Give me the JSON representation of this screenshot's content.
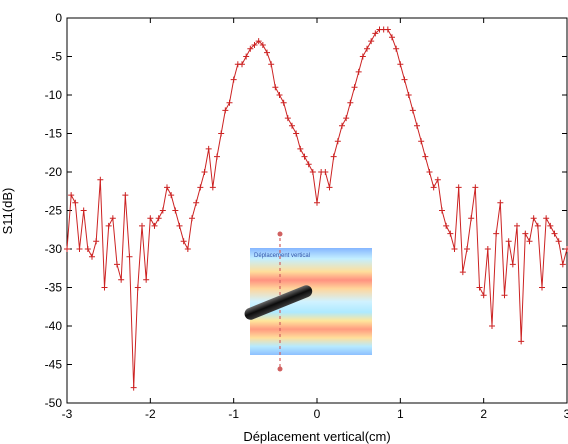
{
  "chart_data": {
    "type": "line",
    "xlabel": "Déplacement vertical(cm)",
    "ylabel": "S11(dB)",
    "xlim": [
      -3,
      3
    ],
    "ylim": [
      -50,
      0
    ],
    "xticks": [
      -3,
      -2,
      -1,
      0,
      1,
      2,
      3
    ],
    "yticks": [
      0,
      -5,
      -10,
      -15,
      -20,
      -25,
      -30,
      -35,
      -40,
      -45,
      -50
    ],
    "grid": false,
    "colors": {
      "series": "#cc2222",
      "axis": "#000000"
    },
    "series": [
      {
        "marker": "plus",
        "x": [
          -3.0,
          -2.95,
          -2.9,
          -2.85,
          -2.8,
          -2.75,
          -2.7,
          -2.65,
          -2.6,
          -2.55,
          -2.5,
          -2.45,
          -2.4,
          -2.35,
          -2.3,
          -2.25,
          -2.2,
          -2.15,
          -2.1,
          -2.05,
          -2.0,
          -1.95,
          -1.9,
          -1.85,
          -1.8,
          -1.75,
          -1.7,
          -1.65,
          -1.6,
          -1.55,
          -1.5,
          -1.45,
          -1.4,
          -1.35,
          -1.3,
          -1.25,
          -1.2,
          -1.15,
          -1.1,
          -1.05,
          -1.0,
          -0.95,
          -0.9,
          -0.85,
          -0.8,
          -0.75,
          -0.7,
          -0.65,
          -0.6,
          -0.55,
          -0.5,
          -0.45,
          -0.4,
          -0.35,
          -0.3,
          -0.25,
          -0.2,
          -0.15,
          -0.1,
          -0.05,
          0.0,
          0.05,
          0.1,
          0.15,
          0.2,
          0.25,
          0.3,
          0.35,
          0.4,
          0.45,
          0.5,
          0.55,
          0.6,
          0.65,
          0.7,
          0.75,
          0.8,
          0.85,
          0.9,
          0.95,
          1.0,
          1.05,
          1.1,
          1.15,
          1.2,
          1.25,
          1.3,
          1.35,
          1.4,
          1.45,
          1.5,
          1.55,
          1.6,
          1.65,
          1.7,
          1.75,
          1.8,
          1.85,
          1.9,
          1.95,
          2.0,
          2.05,
          2.1,
          2.15,
          2.2,
          2.25,
          2.3,
          2.35,
          2.4,
          2.45,
          2.5,
          2.55,
          2.6,
          2.65,
          2.7,
          2.75,
          2.8,
          2.85,
          2.9,
          2.95,
          3.0
        ],
        "y": [
          -30,
          -23,
          -24,
          -30,
          -25,
          -30,
          -31,
          -29,
          -21,
          -35,
          -27,
          -26,
          -32,
          -34,
          -23,
          -31,
          -48,
          -35,
          -27,
          -34,
          -26,
          -27,
          -26,
          -25,
          -22,
          -23,
          -25,
          -27,
          -29,
          -30,
          -26,
          -24,
          -22,
          -20,
          -17,
          -22,
          -18,
          -15,
          -12,
          -11,
          -8,
          -6,
          -6,
          -5,
          -4,
          -3.5,
          -3,
          -3.5,
          -4.5,
          -6,
          -9,
          -10,
          -11,
          -13,
          -14,
          -15,
          -17,
          -18,
          -19,
          -20,
          -24,
          -20,
          -20,
          -22,
          -18,
          -16,
          -14,
          -13,
          -11,
          -9,
          -7,
          -5,
          -4,
          -3,
          -2,
          -1.5,
          -1.5,
          -1.5,
          -2.5,
          -4,
          -6,
          -8,
          -10,
          -12,
          -14,
          -16,
          -18,
          -20,
          -22,
          -21,
          -25,
          -27,
          -28,
          -30,
          -22,
          -33,
          -30,
          -26,
          -22,
          -35,
          -36,
          -30,
          -40,
          -28,
          -24,
          -36,
          -29,
          -32,
          -27,
          -42,
          -28,
          -29,
          -26,
          -27,
          -35,
          -26,
          -27,
          -28,
          -29,
          -32,
          -30
        ]
      }
    ],
    "inset": {
      "title": "Déplacement vertical"
    }
  }
}
